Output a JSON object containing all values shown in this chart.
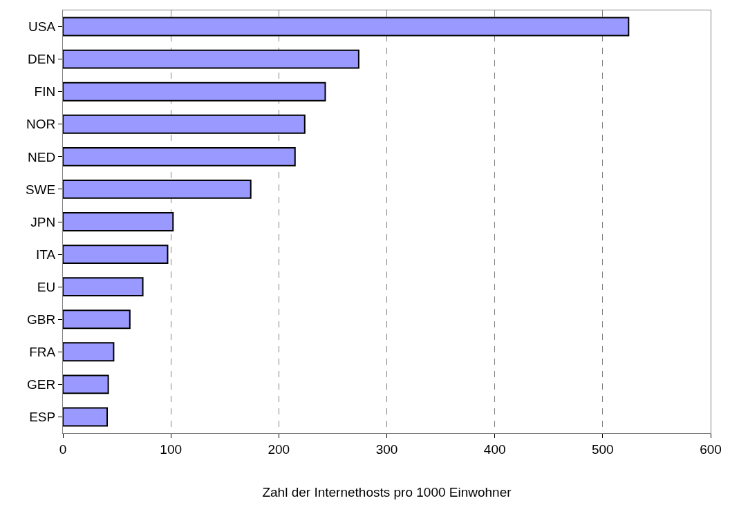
{
  "chart_data": {
    "type": "bar",
    "orientation": "horizontal",
    "categories": [
      "USA",
      "DEN",
      "FIN",
      "NOR",
      "NED",
      "SWE",
      "JPN",
      "ITA",
      "EU",
      "GBR",
      "FRA",
      "GER",
      "ESP"
    ],
    "values": [
      524,
      274,
      243,
      224,
      215,
      174,
      102,
      97,
      74,
      62,
      47,
      42,
      41
    ],
    "color": "#9999ff",
    "xlabel": "Zahl der Internethosts pro 1000 Einwohner",
    "xlim": [
      0,
      600
    ],
    "xticks": [
      0,
      100,
      200,
      300,
      400,
      500,
      600
    ],
    "grid": "x",
    "line_style": "dashed"
  }
}
